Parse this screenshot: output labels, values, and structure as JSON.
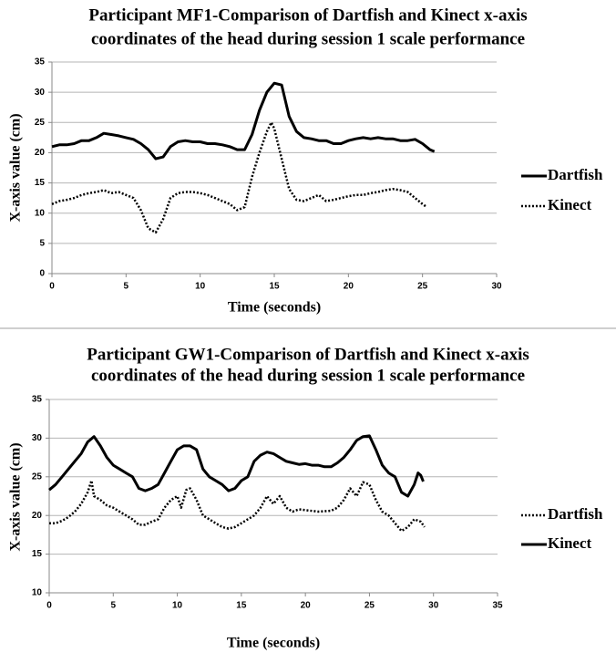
{
  "chart_data": [
    {
      "type": "line",
      "title": [
        "Participant MF1-Comparison of Dartfish and Kinect x-axis",
        "coordinates of the head during session 1 scale performance"
      ],
      "x_label": "Time (seconds)",
      "y_label": "X-axis value (cm)",
      "xlim": [
        0,
        30
      ],
      "xticks": [
        0,
        5,
        10,
        15,
        20,
        25,
        30
      ],
      "ylim": [
        0,
        35
      ],
      "yticks": [
        0,
        5,
        10,
        15,
        20,
        25,
        30,
        35
      ],
      "grid": true,
      "series": [
        {
          "name": "Dartfish",
          "color": "#000000",
          "dash": "solid",
          "x": [
            0,
            0.5,
            1,
            1.5,
            2,
            2.5,
            3,
            3.5,
            4,
            4.5,
            5,
            5.5,
            6,
            6.5,
            7,
            7.5,
            8,
            8.5,
            9,
            9.5,
            10,
            10.5,
            11,
            11.5,
            12,
            12.5,
            13,
            13.5,
            14,
            14.5,
            15,
            15.5,
            16,
            16.5,
            17,
            17.5,
            18,
            18.5,
            19,
            19.5,
            20,
            20.5,
            21,
            21.5,
            22,
            22.5,
            23,
            23.5,
            24,
            24.5,
            25,
            25.5,
            25.8
          ],
          "values": [
            21,
            21.3,
            21.3,
            21.5,
            22,
            22,
            22.5,
            23.2,
            23,
            22.8,
            22.5,
            22.2,
            21.5,
            20.5,
            19,
            19.3,
            21,
            21.8,
            22,
            21.8,
            21.8,
            21.5,
            21.5,
            21.3,
            21,
            20.5,
            20.5,
            23,
            27,
            30,
            31.5,
            31.2,
            26,
            23.5,
            22.5,
            22.3,
            22,
            22,
            21.5,
            21.5,
            22,
            22.3,
            22.5,
            22.3,
            22.5,
            22.3,
            22.3,
            22,
            22,
            22.2,
            21.5,
            20.5,
            20.2
          ]
        },
        {
          "name": "Kinect",
          "color": "#000000",
          "dash": "dotted",
          "x": [
            0,
            0.5,
            1,
            1.5,
            2,
            2.5,
            3,
            3.5,
            4,
            4.5,
            5,
            5.5,
            6,
            6.5,
            7,
            7.5,
            8,
            8.5,
            9,
            9.5,
            10,
            10.5,
            11,
            11.5,
            12,
            12.5,
            13,
            13.5,
            14,
            14.5,
            14.8,
            15,
            15.5,
            16,
            16.5,
            17,
            17.5,
            18,
            18.5,
            19,
            19.5,
            20,
            20.5,
            21,
            21.5,
            22,
            22.5,
            23,
            23.5,
            24,
            24.5,
            25,
            25.3
          ],
          "values": [
            11.5,
            12,
            12.2,
            12.5,
            13,
            13.3,
            13.5,
            13.8,
            13.3,
            13.5,
            13,
            12.5,
            10.5,
            7.5,
            6.8,
            9,
            12.5,
            13.3,
            13.5,
            13.5,
            13.3,
            13,
            12.5,
            12,
            11.5,
            10.5,
            11,
            16,
            20,
            23.5,
            25,
            24,
            19,
            14,
            12.2,
            12,
            12.5,
            13,
            12,
            12.2,
            12.5,
            12.8,
            13,
            13,
            13.3,
            13.5,
            13.8,
            14,
            13.8,
            13.5,
            12.5,
            11.5,
            11
          ]
        }
      ]
    },
    {
      "type": "line",
      "title": [
        "Participant GW1-Comparison of Dartfish and Kinect x-axis",
        "coordinates of the head during session 1 scale performance"
      ],
      "x_label": "Time (seconds)",
      "y_label": "X-axis value (cm)",
      "xlim": [
        0,
        35
      ],
      "xticks": [
        0,
        5,
        10,
        15,
        20,
        25,
        30,
        35
      ],
      "ylim": [
        10,
        35
      ],
      "yticks": [
        10,
        15,
        20,
        25,
        30,
        35
      ],
      "grid": true,
      "series": [
        {
          "name": "Dartfish",
          "color": "#000000",
          "dash": "dotted",
          "x": [
            0,
            0.5,
            1,
            1.5,
            2,
            2.5,
            3,
            3.3,
            3.5,
            4,
            4.5,
            5,
            5.5,
            6,
            6.5,
            7,
            7.5,
            8,
            8.5,
            9,
            9.5,
            10,
            10.3,
            10.7,
            11,
            11.5,
            12,
            12.5,
            13,
            13.5,
            14,
            14.5,
            15,
            15.5,
            16,
            16.5,
            17,
            17.5,
            18,
            18.5,
            19,
            19.5,
            20,
            21,
            22,
            22.5,
            23,
            23.5,
            24,
            24.5,
            25,
            25.5,
            26,
            26.5,
            27,
            27.5,
            28,
            28.5,
            29,
            29.3
          ],
          "values": [
            19,
            19,
            19.3,
            19.8,
            20.5,
            21.5,
            23,
            24.5,
            22.5,
            22,
            21.3,
            21,
            20.5,
            20,
            19.5,
            18.8,
            18.8,
            19.2,
            19.5,
            21,
            22,
            22.5,
            21,
            23.3,
            23.5,
            22,
            20,
            19.5,
            19,
            18.5,
            18.3,
            18.5,
            19,
            19.5,
            20,
            21,
            22.5,
            21.5,
            22.5,
            21,
            20.5,
            20.8,
            20.7,
            20.5,
            20.6,
            21,
            22,
            23.5,
            22.5,
            24.3,
            24,
            22,
            20.5,
            20,
            19,
            18,
            18.5,
            19.5,
            19.2,
            18.5
          ]
        },
        {
          "name": "Kinect",
          "color": "#000000",
          "dash": "solid",
          "x": [
            0,
            0.5,
            1,
            1.5,
            2,
            2.5,
            3,
            3.5,
            4,
            4.5,
            5,
            5.5,
            6,
            6.5,
            7,
            7.5,
            8,
            8.5,
            9,
            9.5,
            10,
            10.5,
            11,
            11.5,
            12,
            12.5,
            13,
            13.5,
            14,
            14.5,
            15,
            15.5,
            16,
            16.5,
            17,
            17.5,
            18,
            18.5,
            19,
            19.5,
            20,
            20.5,
            21,
            21.5,
            22,
            22.5,
            23,
            23.5,
            24,
            24.5,
            25,
            25.5,
            26,
            26.5,
            27,
            27.5,
            28,
            28.5,
            28.8,
            29,
            29.2
          ],
          "values": [
            23.3,
            24,
            25,
            26,
            27,
            28,
            29.5,
            30.2,
            29,
            27.5,
            26.5,
            26,
            25.5,
            25,
            23.5,
            23.2,
            23.5,
            24,
            25.5,
            27,
            28.5,
            29,
            29,
            28.5,
            26,
            25,
            24.5,
            24,
            23.2,
            23.5,
            24.5,
            25,
            27,
            27.8,
            28.2,
            28,
            27.5,
            27,
            26.8,
            26.6,
            26.7,
            26.5,
            26.5,
            26.3,
            26.3,
            26.8,
            27.5,
            28.5,
            29.7,
            30.2,
            30.3,
            28.5,
            26.5,
            25.5,
            25,
            23,
            22.5,
            24,
            25.5,
            25.2,
            24.4
          ]
        }
      ]
    }
  ]
}
